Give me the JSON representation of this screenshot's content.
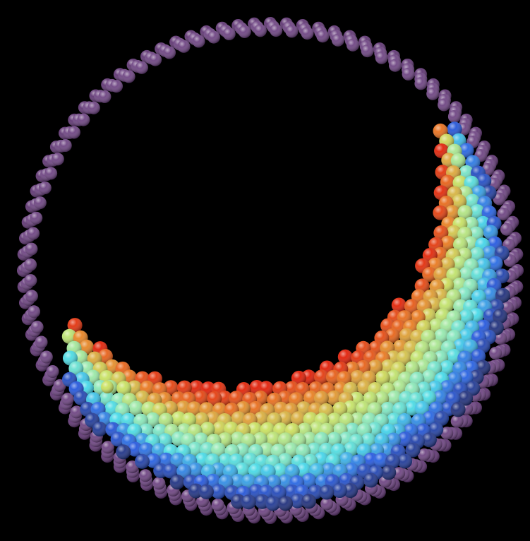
{
  "scene": {
    "description_tag": "granular-flow-rotating-drum",
    "background": "#000000",
    "colors": {
      "wall": "#5a2f6e",
      "wall_highlight": "#9a6fb0",
      "fast": "#e01800",
      "fast_mid": "#e87a1a",
      "mid_yellow": "#c8e05a",
      "mid_green": "#8fe8b0",
      "mid_cyan": "#3fd8e8",
      "slow_blue": "#1f55e0",
      "slow_dark": "#1a2a78"
    },
    "colormap_order": [
      "slow_dark",
      "slow_blue",
      "mid_cyan",
      "mid_green",
      "mid_yellow",
      "fast_mid",
      "fast"
    ]
  }
}
